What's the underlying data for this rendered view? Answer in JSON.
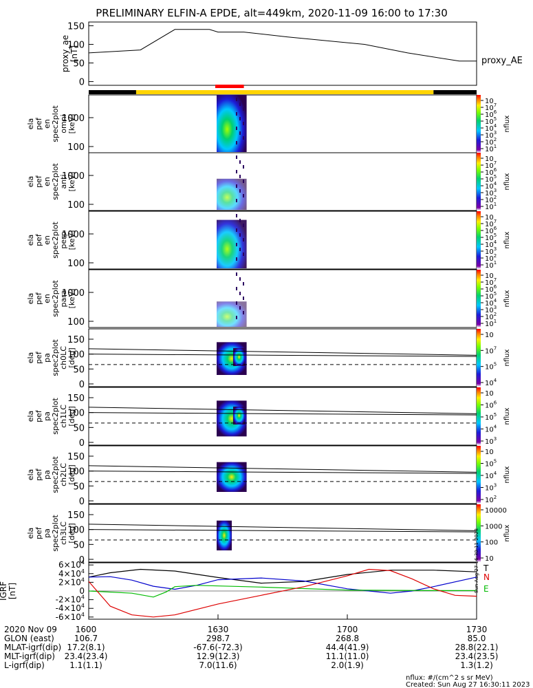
{
  "title": "PRELIMINARY ELFIN-A EPDE, alt=449km, 2020-11-09 16:00 to 17:30",
  "colors": {
    "orbit_black": "#000000",
    "orbit_yellow": "#ffd400",
    "orbit_red": "#ff0000",
    "field_black": "#000000",
    "field_blue": "#0000cc",
    "field_green": "#00bb00",
    "field_red": "#dd0000"
  },
  "proxy_ae": {
    "ylabel": "proxy_ae\n[nT]",
    "legend": "proxy_AE",
    "ticks": [
      "150",
      "100",
      "50",
      "0"
    ],
    "tick_values": [
      150,
      100,
      50,
      0
    ],
    "ylim": [
      -10,
      160
    ]
  },
  "orbit_bar": {
    "segments": [
      {
        "color": "black",
        "t0": 1600,
        "t1": 1611
      },
      {
        "color": "yellow",
        "t0": 1611,
        "t1": 1720
      },
      {
        "color": "black",
        "t0": 1720,
        "t1": 1730
      }
    ],
    "science_zone": {
      "t0": 1630,
      "t1": 1636
    }
  },
  "spectra": [
    {
      "ylabel": "ela\npef\nen\nspec2plot\nomni\n[keV]",
      "ticks": [
        "1000",
        "100"
      ],
      "cbar": [
        "10",
        "7",
        "6",
        "5",
        "4",
        "3",
        "2",
        "1"
      ],
      "cbar_label": "nflux"
    },
    {
      "ylabel": "ela\npef\nen\nspec2plot\nanti\n[keV]",
      "ticks": [
        "1000",
        "100"
      ],
      "cbar": [
        "10",
        "7",
        "6",
        "5",
        "4",
        "3",
        "2",
        "1"
      ],
      "cbar_label": "nflux"
    },
    {
      "ylabel": "ela\npef\nen\nspec2plot\nperp\n[keV]",
      "ticks": [
        "1000",
        "100"
      ],
      "cbar": [
        "10",
        "7",
        "6",
        "5",
        "4",
        "3",
        "2",
        "1"
      ],
      "cbar_label": "nflux"
    },
    {
      "ylabel": "ela\npef\nen\nspec2plot\npara\n[keV]",
      "ticks": [
        "1000",
        "100"
      ],
      "cbar": [
        "10",
        "7",
        "6",
        "5",
        "4",
        "3",
        "2",
        "1"
      ],
      "cbar_label": "nflux"
    }
  ],
  "pitch": [
    {
      "ylabel": "ela\npef\npa\nspec2plot\nch0LC\n[deg]",
      "ticks": [
        "150",
        "100",
        "50",
        "0"
      ],
      "cbar": [
        "10",
        "7",
        "5",
        "4"
      ],
      "cbar_label": "nflux"
    },
    {
      "ylabel": "ela\npef\npa\nspec2plot\nch1LC\n[deg]",
      "ticks": [
        "150",
        "100",
        "50",
        "0"
      ],
      "cbar": [
        "10",
        "6",
        "5",
        "4",
        "3"
      ],
      "cbar_label": "nflux"
    },
    {
      "ylabel": "ela\npef\npa\nspec2plot\nch2LC\n[deg]",
      "ticks": [
        "150",
        "100",
        "50",
        "0"
      ],
      "cbar": [
        "10",
        "5",
        "4",
        "3",
        "2"
      ],
      "cbar_label": "nflux"
    },
    {
      "ylabel": "ela\npef\npa\nspec2plot\nch3LC\n[deg]",
      "ticks": [
        "150",
        "100",
        "50",
        "0"
      ],
      "cbar": [
        "10000",
        "1000",
        "100",
        "10"
      ],
      "cbar_label": "nflux"
    }
  ],
  "field": {
    "ylabel": "IGRF\n[nT]",
    "ticks": [
      {
        "b": "6",
        "e": "4",
        "v": 60000
      },
      {
        "b": "4",
        "e": "4",
        "v": 40000
      },
      {
        "b": "2",
        "e": "4",
        "v": 20000
      },
      {
        "b": "0",
        "e": "",
        "v": 0
      },
      {
        "b": "-2",
        "e": "4",
        "v": -20000
      },
      {
        "b": "-4",
        "e": "4",
        "v": -40000
      },
      {
        "b": "-6",
        "e": "4",
        "v": -60000
      }
    ],
    "ylim": [
      -65000,
      65000
    ],
    "components": [
      "T",
      "N",
      "E"
    ]
  },
  "chart_data": {
    "type": "line",
    "title": "PRELIMINARY ELFIN-A EPDE, alt=449km, 2020-11-09 16:00 to 17:30",
    "x_unit": "minutes after 16:00 UT",
    "xlim": [
      0,
      90
    ],
    "proxy_ae": {
      "name": "proxy_AE",
      "ylim": [
        -10,
        160
      ],
      "x": [
        0,
        12,
        20,
        28,
        30,
        36,
        46,
        64,
        74,
        86,
        90
      ],
      "y": [
        77,
        85,
        140,
        140,
        133,
        133,
        120,
        100,
        77,
        55,
        55
      ]
    },
    "igrf": [
      {
        "name": "T",
        "color": "#000000",
        "x": [
          0,
          5,
          12,
          20,
          30,
          40,
          50,
          60,
          70,
          80,
          90
        ],
        "y": [
          32000,
          42000,
          50000,
          46000,
          31000,
          18000,
          22000,
          38000,
          48000,
          48000,
          44000
        ]
      },
      {
        "name": "N",
        "color": "#0000cc",
        "x": [
          0,
          5,
          10,
          15,
          20,
          25,
          30,
          40,
          50,
          60,
          70,
          75,
          80,
          90
        ],
        "y": [
          32000,
          33000,
          25000,
          11000,
          4000,
          13000,
          26000,
          30000,
          23000,
          5000,
          -5000,
          0,
          10000,
          32000
        ]
      },
      {
        "name": "E",
        "color": "#00bb00",
        "x": [
          0,
          10,
          15,
          18,
          20,
          25,
          40,
          60,
          80,
          90
        ],
        "y": [
          0,
          -5000,
          -14000,
          -2000,
          10000,
          13000,
          9000,
          2000,
          1000,
          1000
        ]
      },
      {
        "name": "red",
        "color": "#dd0000",
        "x": [
          0,
          5,
          10,
          15,
          20,
          30,
          40,
          50,
          60,
          65,
          70,
          75,
          80,
          85,
          90
        ],
        "y": [
          22000,
          -35000,
          -55000,
          -60000,
          -55000,
          -30000,
          -10000,
          10000,
          35000,
          50000,
          47000,
          28000,
          5000,
          -10000,
          -12000
        ]
      }
    ]
  },
  "time_axis": {
    "row_labels": [
      "2020 Nov 09",
      "GLON (east)",
      "MLAT-igrf(dip)",
      "MLT-igrf(dip)",
      "L-igrf(dip)"
    ],
    "columns": [
      {
        "t": "1600",
        "v": [
          "106.7",
          "17.2(8.1)",
          "23.4(23.4)",
          "1.1(1.1)"
        ]
      },
      {
        "t": "1630",
        "v": [
          "298.7",
          "-67.6(-72.3)",
          "12.9(12.3)",
          "7.0(11.6)"
        ]
      },
      {
        "t": "1700",
        "v": [
          "268.8",
          "44.4(41.9)",
          "11.1(11.0)",
          "2.0(1.9)"
        ]
      },
      {
        "t": "1730",
        "v": [
          "85.0",
          "28.8(22.1)",
          "23.4(23.5)",
          "1.3(1.2)"
        ]
      }
    ]
  },
  "footer": {
    "unit": "nflux: #/(cm^2 s sr MeV)",
    "created": "Created: Sun Aug 27 16:30:11 2023",
    "side_stamp": "Sun Aug 27 16:30:11 2023"
  }
}
